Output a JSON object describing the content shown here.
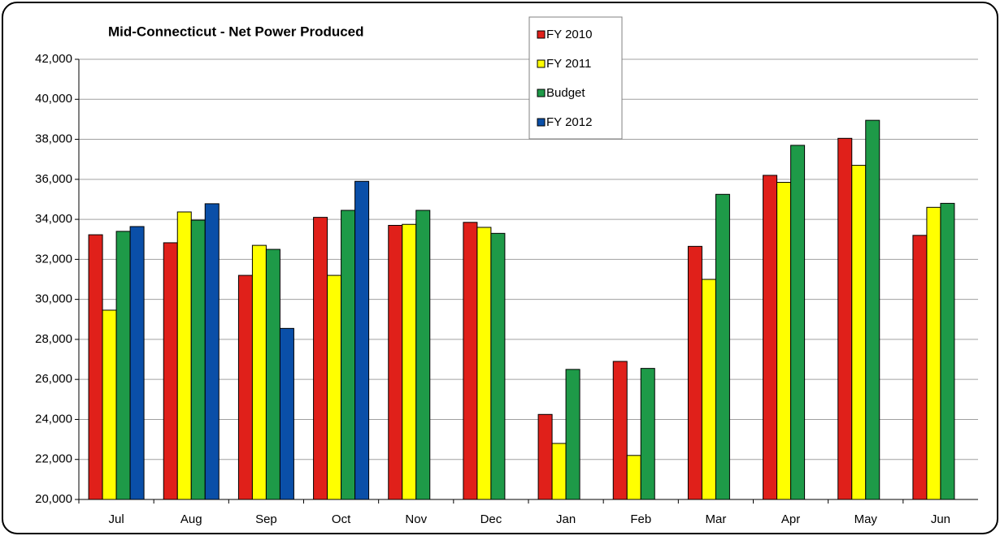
{
  "chart_data": {
    "type": "bar",
    "title": "Mid-Connecticut - Net Power Produced",
    "categories": [
      "Jul",
      "Aug",
      "Sep",
      "Oct",
      "Nov",
      "Dec",
      "Jan",
      "Feb",
      "Mar",
      "Apr",
      "May",
      "Jun"
    ],
    "series": [
      {
        "name": "FY 2010",
        "color": "#e0201a",
        "values": [
          33230,
          32830,
          31200,
          34100,
          33700,
          33850,
          24250,
          26900,
          32650,
          36200,
          38050,
          33200
        ]
      },
      {
        "name": "FY 2011",
        "color": "#ffff00",
        "values": [
          29460,
          34370,
          32700,
          31200,
          33750,
          33600,
          22800,
          22200,
          31000,
          35850,
          36700,
          34600
        ]
      },
      {
        "name": "Budget",
        "color": "#1e9a48",
        "values": [
          33400,
          33960,
          32500,
          34450,
          34450,
          33300,
          26500,
          26550,
          35250,
          37700,
          38950,
          34800
        ]
      },
      {
        "name": "FY 2012",
        "color": "#0a4fa8",
        "values": [
          33640,
          34780,
          28550,
          35900,
          null,
          null,
          null,
          null,
          null,
          null,
          null,
          null
        ]
      }
    ],
    "ylim": [
      20000,
      42000
    ],
    "yticks": [
      {
        "value": 20000,
        "label": "20,000"
      },
      {
        "value": 22000,
        "label": "22,000"
      },
      {
        "value": 24000,
        "label": "24,000"
      },
      {
        "value": 26000,
        "label": "26,000"
      },
      {
        "value": 28000,
        "label": "28,000"
      },
      {
        "value": 30000,
        "label": "30,000"
      },
      {
        "value": 32000,
        "label": "32,000"
      },
      {
        "value": 34000,
        "label": "34,000"
      },
      {
        "value": 36000,
        "label": "36,000"
      },
      {
        "value": 38000,
        "label": "38,000"
      },
      {
        "value": 40000,
        "label": "40,000"
      },
      {
        "value": 42000,
        "label": "42,000"
      }
    ],
    "grid": true
  }
}
